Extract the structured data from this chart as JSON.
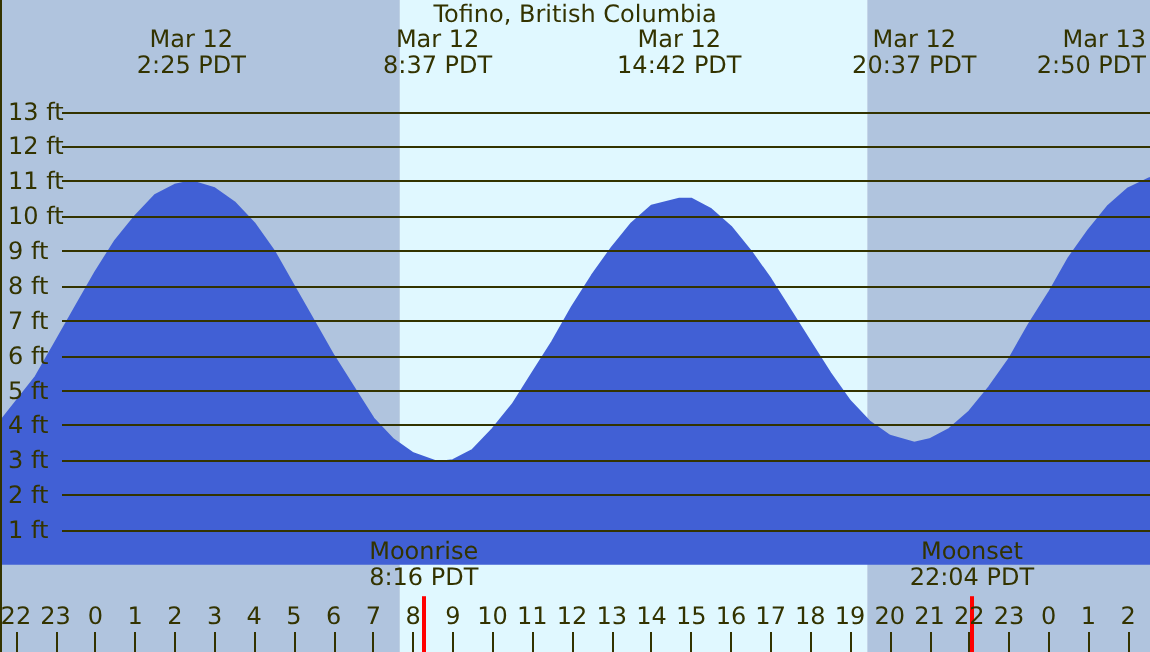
{
  "chart_data": {
    "type": "area",
    "title": "Tofino, British Columbia",
    "x": [
      "--03-11T21:36",
      "--03-11T22:30",
      "--03-11T23:00",
      "--03-11T23:30",
      "--03-12T00:00",
      "--03-12T00:30",
      "--03-12T01:00",
      "--03-12T01:30",
      "--03-12T02:00",
      "--03-12T02:25",
      "--03-12T03:00",
      "--03-12T03:30",
      "--03-12T04:00",
      "--03-12T04:30",
      "--03-12T05:00",
      "--03-12T05:30",
      "--03-12T06:00",
      "--03-12T06:30",
      "--03-12T07:00",
      "--03-12T07:30",
      "--03-12T08:00",
      "--03-12T08:37",
      "--03-12T09:00",
      "--03-12T09:30",
      "--03-12T10:00",
      "--03-12T10:30",
      "--03-12T11:00",
      "--03-12T11:30",
      "--03-12T12:00",
      "--03-12T12:30",
      "--03-12T13:00",
      "--03-12T13:30",
      "--03-12T14:00",
      "--03-12T14:42",
      "--03-12T15:00",
      "--03-12T15:30",
      "--03-12T16:00",
      "--03-12T16:30",
      "--03-12T17:00",
      "--03-12T17:30",
      "--03-12T18:00",
      "--03-12T18:30",
      "--03-12T19:00",
      "--03-12T19:30",
      "--03-12T20:00",
      "--03-12T20:37",
      "--03-12T21:00",
      "--03-12T21:30",
      "--03-12T22:00",
      "--03-12T22:30",
      "--03-12T23:00",
      "--03-12T23:30",
      "--03-13T00:00",
      "--03-13T00:30",
      "--03-13T01:00",
      "--03-13T01:30",
      "--03-13T02:00",
      "--03-13T02:33"
    ],
    "series": [
      {
        "color": "#4160d5",
        "values": [
          4.1,
          5.4,
          6.4,
          7.4,
          8.4,
          9.3,
          10.0,
          10.6,
          10.9,
          11.0,
          10.8,
          10.4,
          9.8,
          9.0,
          8.0,
          7.0,
          6.0,
          5.1,
          4.2,
          3.6,
          3.2,
          2.95,
          3.0,
          3.3,
          3.9,
          4.6,
          5.5,
          6.4,
          7.4,
          8.3,
          9.1,
          9.8,
          10.3,
          10.5,
          10.5,
          10.2,
          9.7,
          9.0,
          8.2,
          7.3,
          6.4,
          5.5,
          4.7,
          4.1,
          3.7,
          3.5,
          3.6,
          3.9,
          4.4,
          5.1,
          5.9,
          6.9,
          7.8,
          8.8,
          9.6,
          10.3,
          10.8,
          11.1
        ]
      }
    ],
    "xlim": [
      "--03-11T21:36",
      "--03-13T02:33"
    ],
    "xticks": [
      {
        "value": "--03-11T22:00",
        "label": "22"
      },
      {
        "value": "--03-11T23:00",
        "label": "23"
      },
      {
        "value": "--03-12T00:00",
        "label": "0"
      },
      {
        "value": "--03-12T01:00",
        "label": "1"
      },
      {
        "value": "--03-12T02:00",
        "label": "2"
      },
      {
        "value": "--03-12T03:00",
        "label": "3"
      },
      {
        "value": "--03-12T04:00",
        "label": "4"
      },
      {
        "value": "--03-12T05:00",
        "label": "5"
      },
      {
        "value": "--03-12T06:00",
        "label": "6"
      },
      {
        "value": "--03-12T07:00",
        "label": "7"
      },
      {
        "value": "--03-12T08:00",
        "label": "8"
      },
      {
        "value": "--03-12T09:00",
        "label": "9"
      },
      {
        "value": "--03-12T10:00",
        "label": "10"
      },
      {
        "value": "--03-12T11:00",
        "label": "11"
      },
      {
        "value": "--03-12T12:00",
        "label": "12"
      },
      {
        "value": "--03-12T13:00",
        "label": "13"
      },
      {
        "value": "--03-12T14:00",
        "label": "14"
      },
      {
        "value": "--03-12T15:00",
        "label": "15"
      },
      {
        "value": "--03-12T16:00",
        "label": "16"
      },
      {
        "value": "--03-12T17:00",
        "label": "17"
      },
      {
        "value": "--03-12T18:00",
        "label": "18"
      },
      {
        "value": "--03-12T19:00",
        "label": "19"
      },
      {
        "value": "--03-12T20:00",
        "label": "20"
      },
      {
        "value": "--03-12T21:00",
        "label": "21"
      },
      {
        "value": "--03-12T22:00",
        "label": "22"
      },
      {
        "value": "--03-12T23:00",
        "label": "23"
      },
      {
        "value": "--03-13T00:00",
        "label": "0"
      },
      {
        "value": "--03-13T01:00",
        "label": "1"
      },
      {
        "value": "--03-13T02:00",
        "label": "2"
      }
    ],
    "ylim": [
      -2.5,
      16.2
    ],
    "yticks": [
      {
        "value": 1,
        "label": "1 ft"
      },
      {
        "value": 2,
        "label": "2 ft"
      },
      {
        "value": 3,
        "label": "3 ft"
      },
      {
        "value": 4,
        "label": "4 ft"
      },
      {
        "value": 5,
        "label": "5 ft"
      },
      {
        "value": 6,
        "label": "6 ft"
      },
      {
        "value": 7,
        "label": "7 ft"
      },
      {
        "value": 8,
        "label": "8 ft"
      },
      {
        "value": 9,
        "label": "9 ft"
      },
      {
        "value": 10,
        "label": "10 ft"
      },
      {
        "value": 11,
        "label": "11 ft"
      },
      {
        "value": 12,
        "label": "12 ft"
      },
      {
        "value": 13,
        "label": "13 ft"
      }
    ],
    "grid": "y",
    "marker": "none",
    "bands": [
      {
        "axis": "x",
        "from": "--03-11T21:36",
        "to": "--03-12T07:40",
        "color": "#b0c4de"
      },
      {
        "axis": "x",
        "from": "--03-12T07:40",
        "to": "--03-12T19:26",
        "color": "#e0f8ff"
      },
      {
        "axis": "x",
        "from": "--03-12T19:26",
        "to": "--03-13T02:33",
        "color": "#b0c4de"
      }
    ],
    "ref_lines": [
      {
        "axis": "x",
        "value": "--03-12T08:16",
        "label": "Moonrise\n8:16 PDT",
        "color": "#ff0000"
      },
      {
        "axis": "x",
        "value": "--03-12T22:04",
        "label": "Moonset\n22:04 PDT",
        "color": "#ff0000"
      }
    ],
    "annotations": [
      "Mar 12\n2:25 PDT",
      "Mar 12\n8:37 PDT",
      "Mar 12\n14:42 PDT",
      "Mar 12\n20:37 PDT",
      "Mar 13\n2:50 PDT"
    ]
  }
}
